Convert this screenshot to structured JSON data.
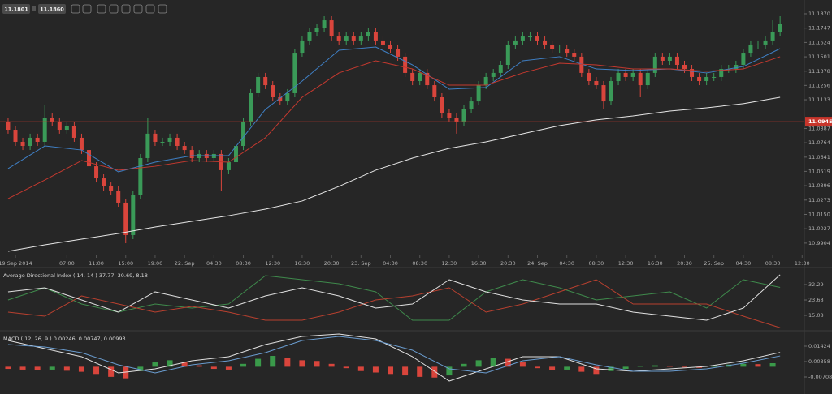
{
  "header": {
    "bid": "11.1801",
    "ask": "11.1860"
  },
  "chart_data": [
    {
      "type": "candlestick",
      "up_color": "#3a9a58",
      "down_color": "#d9453c",
      "xlim": [
        -1.1,
        108.3
      ],
      "ylim": [
        10.9799,
        11.1988
      ],
      "yticks": [
        {
          "value": 11.187,
          "label": "11.1870"
        },
        11.1747,
        11.1624,
        11.1501,
        11.1378,
        11.1256,
        11.1133,
        11.0887,
        11.0764,
        11.0641,
        11.0519,
        11.0396,
        11.0273,
        {
          "value": 11.015,
          "label": "11.0150"
        },
        11.0027,
        10.9904
      ],
      "xticks": [
        {
          "value": 1,
          "label": "19 Sep 2014"
        },
        {
          "value": 8,
          "label": "07:00"
        },
        {
          "value": 12,
          "label": "11:00"
        },
        {
          "value": 16,
          "label": "15:00"
        },
        {
          "value": 20,
          "label": "19:00"
        },
        {
          "value": 24,
          "label": "22. Sep"
        },
        {
          "value": 28,
          "label": "04:30"
        },
        {
          "value": 32,
          "label": "08:30"
        },
        {
          "value": 36,
          "label": "12:30"
        },
        {
          "value": 40,
          "label": "16:30"
        },
        {
          "value": 44,
          "label": "20:30"
        },
        {
          "value": 48,
          "label": "23. Sep"
        },
        {
          "value": 52,
          "label": "04:30"
        },
        {
          "value": 56,
          "label": "08:30"
        },
        {
          "value": 60,
          "label": "12:30"
        },
        {
          "value": 64,
          "label": "16:30"
        },
        {
          "value": 68,
          "label": "20:30"
        },
        {
          "value": 72,
          "label": "24. Sep"
        },
        {
          "value": 76,
          "label": "04:30"
        },
        {
          "value": 80,
          "label": "08:30"
        },
        {
          "value": 84,
          "label": "12:30"
        },
        {
          "value": 88,
          "label": "16:30"
        },
        {
          "value": 92,
          "label": "20:30"
        },
        {
          "value": 96,
          "label": "25. Sep"
        },
        {
          "value": 100,
          "label": "04:30"
        },
        {
          "value": 104,
          "label": "08:30"
        },
        {
          "value": 108,
          "label": "12:30"
        }
      ],
      "x": [
        0,
        1,
        2,
        3,
        4,
        5,
        6,
        7,
        8,
        9,
        10,
        11,
        12,
        13,
        14,
        15,
        16,
        17,
        18,
        19,
        20,
        21,
        22,
        23,
        24,
        25,
        26,
        27,
        28,
        29,
        30,
        31,
        32,
        33,
        34,
        35,
        36,
        37,
        38,
        39,
        40,
        41,
        42,
        43,
        44,
        45,
        46,
        47,
        48,
        49,
        50,
        51,
        52,
        53,
        54,
        55,
        56,
        57,
        58,
        59,
        60,
        61,
        62,
        63,
        64,
        65,
        66,
        67,
        68,
        69,
        70,
        71,
        72,
        73,
        74,
        75,
        76,
        77,
        78,
        79,
        80,
        81,
        82,
        83,
        84,
        85,
        86,
        87,
        88,
        89,
        90,
        91,
        92,
        93,
        94,
        95,
        96,
        97,
        98,
        99,
        100,
        101,
        102,
        103,
        104,
        105
      ],
      "open": [
        11.0946,
        11.0876,
        11.0772,
        11.0737,
        11.0807,
        11.0772,
        11.098,
        11.0946,
        11.0876,
        11.0911,
        11.0807,
        11.0702,
        11.0563,
        11.0459,
        11.039,
        11.0355,
        11.0251,
        10.9973,
        11.032,
        11.0633,
        11.0842,
        11.0772,
        11.0772,
        11.0807,
        11.0737,
        11.0702,
        11.0633,
        11.0668,
        11.0633,
        11.0668,
        11.0529,
        11.0598,
        11.0737,
        11.0946,
        11.1189,
        11.1328,
        11.1258,
        11.1154,
        11.1119,
        11.1189,
        11.1536,
        11.1641,
        11.171,
        11.1745,
        11.1814,
        11.1675,
        11.1641,
        11.1675,
        11.1641,
        11.1675,
        11.171,
        11.1641,
        11.1606,
        11.1571,
        11.1502,
        11.1363,
        11.1293,
        11.1363,
        11.1258,
        11.1154,
        11.1015,
        11.098,
        11.0946,
        11.105,
        11.1119,
        11.1258,
        11.1328,
        11.1363,
        11.1432,
        11.1606,
        11.1641,
        11.1675,
        11.1675,
        11.1641,
        11.1606,
        11.1571,
        11.1571,
        11.1536,
        11.1502,
        11.1363,
        11.1293,
        11.1258,
        11.1119,
        11.1293,
        11.1363,
        11.1328,
        11.1363,
        11.1258,
        11.1363,
        11.1502,
        11.1467,
        11.1502,
        11.1432,
        11.1397,
        11.1328,
        11.1293,
        11.1328,
        11.1328,
        11.1397,
        11.1397,
        11.1432,
        11.1536,
        11.1606,
        11.1606,
        11.1641,
        11.171
      ],
      "high": [
        11.098,
        11.0911,
        11.0807,
        11.0842,
        11.0842,
        11.1085,
        11.1015,
        11.098,
        11.0946,
        11.0946,
        11.0842,
        11.0737,
        11.0598,
        11.0494,
        11.0424,
        11.039,
        11.0285,
        11.0355,
        11.0668,
        11.098,
        11.0876,
        11.0807,
        11.0842,
        11.0842,
        11.0772,
        11.0737,
        11.0702,
        11.0702,
        11.0702,
        11.0702,
        11.0633,
        11.0772,
        11.098,
        11.1224,
        11.1363,
        11.1363,
        11.1293,
        11.1189,
        11.1224,
        11.1571,
        11.1675,
        11.1745,
        11.178,
        11.1849,
        11.1849,
        11.171,
        11.171,
        11.171,
        11.171,
        11.1745,
        11.1745,
        11.1675,
        11.1641,
        11.1606,
        11.1536,
        11.1397,
        11.1397,
        11.1397,
        11.1293,
        11.1189,
        11.105,
        11.1015,
        11.1085,
        11.1154,
        11.1293,
        11.1363,
        11.1397,
        11.1467,
        11.1641,
        11.1675,
        11.171,
        11.171,
        11.171,
        11.1675,
        11.1641,
        11.1606,
        11.1606,
        11.1571,
        11.1536,
        11.1397,
        11.1328,
        11.1293,
        11.1328,
        11.1397,
        11.1397,
        11.1397,
        11.1397,
        11.1397,
        11.1536,
        11.1536,
        11.1536,
        11.1536,
        11.1467,
        11.1432,
        11.1363,
        11.1363,
        11.1363,
        11.1432,
        11.1432,
        11.1467,
        11.1571,
        11.1641,
        11.1641,
        11.1675,
        11.1814,
        11.1849
      ],
      "low": [
        11.0842,
        11.0737,
        11.0702,
        11.0702,
        11.0737,
        11.0737,
        11.0911,
        11.0842,
        11.0842,
        11.0772,
        11.0668,
        11.0529,
        11.0424,
        11.0355,
        11.032,
        11.0216,
        10.9903,
        10.9938,
        11.0285,
        11.0598,
        11.0737,
        11.0737,
        11.0737,
        11.0702,
        11.0668,
        11.0598,
        11.0598,
        11.0598,
        11.0598,
        11.0355,
        11.0494,
        11.0563,
        11.0702,
        11.0911,
        11.1154,
        11.1224,
        11.1119,
        11.1085,
        11.1085,
        11.1154,
        11.1502,
        11.1606,
        11.1675,
        11.171,
        11.1641,
        11.1606,
        11.1606,
        11.1606,
        11.1606,
        11.1641,
        11.1606,
        11.1571,
        11.1536,
        11.1467,
        11.1328,
        11.1258,
        11.1258,
        11.1224,
        11.1119,
        11.098,
        11.0946,
        11.0842,
        11.0911,
        11.1015,
        11.1085,
        11.1224,
        11.1293,
        11.1328,
        11.1397,
        11.1571,
        11.1606,
        11.1641,
        11.1606,
        11.1571,
        11.1536,
        11.1536,
        11.1502,
        11.1467,
        11.1328,
        11.1258,
        11.1224,
        11.105,
        11.1085,
        11.1258,
        11.1293,
        11.1293,
        11.1154,
        11.1224,
        11.1328,
        11.1432,
        11.1432,
        11.1397,
        11.1363,
        11.1293,
        11.1258,
        11.1258,
        11.1293,
        11.1293,
        11.1363,
        11.1363,
        11.1397,
        11.1502,
        11.1571,
        11.1571,
        11.1606,
        11.1675
      ],
      "close": [
        11.0876,
        11.0772,
        11.0737,
        11.0807,
        11.0772,
        11.098,
        11.0946,
        11.0876,
        11.0911,
        11.0807,
        11.0702,
        11.0563,
        11.0459,
        11.039,
        11.0355,
        11.0251,
        10.9973,
        11.032,
        11.0633,
        11.0842,
        11.0772,
        11.0772,
        11.0807,
        11.0737,
        11.0702,
        11.0633,
        11.0668,
        11.0633,
        11.0668,
        11.0529,
        11.0598,
        11.0737,
        11.0946,
        11.1189,
        11.1328,
        11.1258,
        11.1154,
        11.1119,
        11.1189,
        11.1536,
        11.1641,
        11.171,
        11.1745,
        11.1814,
        11.1675,
        11.1641,
        11.1675,
        11.1641,
        11.1675,
        11.171,
        11.1641,
        11.1606,
        11.1571,
        11.1502,
        11.1363,
        11.1293,
        11.1363,
        11.1258,
        11.1154,
        11.1015,
        11.098,
        11.0946,
        11.105,
        11.1119,
        11.1258,
        11.1328,
        11.1363,
        11.1432,
        11.1606,
        11.1641,
        11.1675,
        11.1675,
        11.1641,
        11.1606,
        11.1571,
        11.1571,
        11.1536,
        11.1502,
        11.1363,
        11.1293,
        11.1258,
        11.1119,
        11.1293,
        11.1363,
        11.1328,
        11.1363,
        11.1258,
        11.1363,
        11.1502,
        11.1467,
        11.1502,
        11.1432,
        11.1397,
        11.1328,
        11.1293,
        11.1328,
        11.1328,
        11.1397,
        11.1397,
        11.1432,
        11.1536,
        11.1606,
        11.1606,
        11.1641,
        11.171,
        11.178
      ],
      "overlays": [
        {
          "color": "#3f7fc4",
          "x": [
            0,
            5,
            10,
            15,
            20,
            25,
            30,
            35,
            40,
            45,
            50,
            55,
            60,
            65,
            70,
            75,
            80,
            85,
            90,
            95,
            100,
            105
          ],
          "values": [
            11.0543,
            11.0737,
            11.0702,
            11.0515,
            11.0598,
            11.0654,
            11.0654,
            11.105,
            11.1293,
            11.1557,
            11.1585,
            11.1432,
            11.1224,
            11.1238,
            11.1467,
            11.1502,
            11.1397,
            11.1384,
            11.1397,
            11.1363,
            11.1418,
            11.1571
          ]
        },
        {
          "color": "#c4392f",
          "x": [
            0,
            5,
            10,
            15,
            20,
            25,
            30,
            35,
            40,
            45,
            50,
            55,
            60,
            65,
            70,
            75,
            80,
            85,
            90,
            95,
            100,
            105
          ],
          "values": [
            11.0285,
            11.0445,
            11.0612,
            11.0529,
            11.0563,
            11.0612,
            11.0598,
            11.0807,
            11.1154,
            11.1363,
            11.1467,
            11.1397,
            11.1258,
            11.1258,
            11.1363,
            11.1446,
            11.1432,
            11.1397,
            11.1397,
            11.1377,
            11.1397,
            11.1502
          ]
        },
        {
          "color": "#e6e6e6",
          "x": [
            0,
            5,
            10,
            15,
            20,
            25,
            30,
            35,
            40,
            45,
            50,
            55,
            60,
            65,
            70,
            75,
            80,
            85,
            90,
            95,
            100,
            105
          ],
          "values": [
            10.9834,
            10.9889,
            10.9938,
            10.9987,
            11.0042,
            11.0091,
            11.0139,
            11.0195,
            11.0265,
            11.039,
            11.0529,
            11.0633,
            11.0716,
            11.0772,
            11.0841,
            11.0911,
            11.096,
            11.0994,
            11.1036,
            11.1064,
            11.1099,
            11.1154
          ]
        }
      ],
      "price_line": {
        "value": 11.0945,
        "color": "#c8352b"
      }
    },
    {
      "type": "line",
      "title": "Average Directional Index ( 14, 14 ) 37.77, 30.69, 8.18",
      "xlim": [
        -1.1,
        108.3
      ],
      "ylim": [
        7.39,
        40.44
      ],
      "yticks": [
        32.29,
        23.68,
        15.08
      ],
      "x": [
        0,
        5,
        10,
        15,
        20,
        25,
        30,
        35,
        40,
        45,
        50,
        55,
        60,
        65,
        70,
        75,
        80,
        85,
        90,
        95,
        100,
        105
      ],
      "series": [
        {
          "color": "#3f8a4c",
          "values": [
            23.69,
            30.48,
            21.43,
            16.9,
            21.43,
            19.17,
            21.43,
            37.27,
            35.01,
            32.75,
            28.22,
            12.38,
            12.38,
            28.22,
            35.01,
            30.48,
            23.69,
            25.96,
            28.22,
            19.17,
            35.01,
            30.69
          ]
        },
        {
          "color": "#b8402f",
          "values": [
            16.9,
            14.64,
            25.96,
            21.43,
            16.9,
            20.07,
            16.9,
            12.38,
            12.38,
            16.9,
            23.69,
            25.96,
            30.48,
            16.9,
            21.43,
            28.22,
            35.01,
            21.43,
            21.43,
            21.43,
            14.64,
            8.18
          ]
        },
        {
          "color": "#e0e0e0",
          "values": [
            28.22,
            30.48,
            23.69,
            16.9,
            28.22,
            23.69,
            19.17,
            25.96,
            30.48,
            25.96,
            19.17,
            21.43,
            35.01,
            28.22,
            23.69,
            21.43,
            21.43,
            16.9,
            14.64,
            12.38,
            19.17,
            37.77
          ]
        }
      ]
    },
    {
      "type": "line",
      "title": "MACD ( 12, 26, 9 ) 0.00246, 0.00747, 0.00993",
      "xlim": [
        -1.1,
        108.3
      ],
      "ylim": [
        -0.01774,
        0.02322
      ],
      "yticks": [
        0.01424,
        0.00358,
        -0.00708
      ],
      "x": [
        0,
        5,
        10,
        15,
        20,
        25,
        30,
        35,
        40,
        45,
        50,
        55,
        60,
        65,
        70,
        75,
        80,
        85,
        90,
        95,
        100,
        105
      ],
      "histogram": {
        "up_color": "#3a9a4a",
        "down_color": "#d9453c",
        "x": [
          0,
          2,
          4,
          6,
          8,
          10,
          12,
          14,
          16,
          18,
          20,
          22,
          24,
          26,
          28,
          30,
          32,
          34,
          36,
          38,
          40,
          42,
          44,
          46,
          48,
          50,
          52,
          54,
          56,
          58,
          60,
          62,
          64,
          66,
          68,
          70,
          72,
          74,
          76,
          78,
          80,
          82,
          84,
          86,
          88,
          90,
          92,
          94,
          96,
          98,
          100,
          102,
          104
        ],
        "values": [
          -0.0015,
          -0.002,
          -0.0025,
          -0.002,
          -0.0028,
          -0.0035,
          -0.005,
          -0.007,
          -0.008,
          -0.003,
          0.003,
          0.0045,
          0.0035,
          0.001,
          -0.0015,
          -0.002,
          0.002,
          0.0055,
          0.0075,
          0.006,
          0.0045,
          0.004,
          0.002,
          -0.001,
          -0.003,
          -0.004,
          -0.005,
          -0.006,
          -0.007,
          -0.0075,
          -0.006,
          0.002,
          0.0045,
          0.006,
          0.0055,
          0.003,
          -0.001,
          -0.0025,
          -0.002,
          -0.0035,
          -0.005,
          -0.003,
          -0.0015,
          0.0005,
          0.001,
          0.0005,
          -0.0005,
          -0.0008,
          0.001,
          0.0015,
          0.002,
          0.0018,
          0.00246
        ]
      },
      "series": [
        {
          "color": "#e0e0e0",
          "values": [
            0.01818,
            0.01257,
            0.00696,
            -0.00426,
            -0.00146,
            0.00415,
            0.00696,
            0.01537,
            0.02098,
            0.02266,
            0.0193,
            0.00696,
            -0.00987,
            -0.00146,
            0.00696,
            0.00696,
            -0.00146,
            -0.00314,
            -0.00146,
            0.00022,
            0.00415,
            0.00993
          ]
        },
        {
          "color": "#6a9ccf",
          "values": [
            0.01537,
            0.01369,
            0.00976,
            0.00135,
            -0.00426,
            0.00135,
            0.00415,
            0.00976,
            0.01818,
            0.02098,
            0.01818,
            0.01144,
            -0.00146,
            -0.00426,
            0.00415,
            0.00696,
            0.00135,
            -0.00314,
            -0.00314,
            -0.00146,
            0.00247,
            0.00747
          ]
        }
      ]
    }
  ]
}
